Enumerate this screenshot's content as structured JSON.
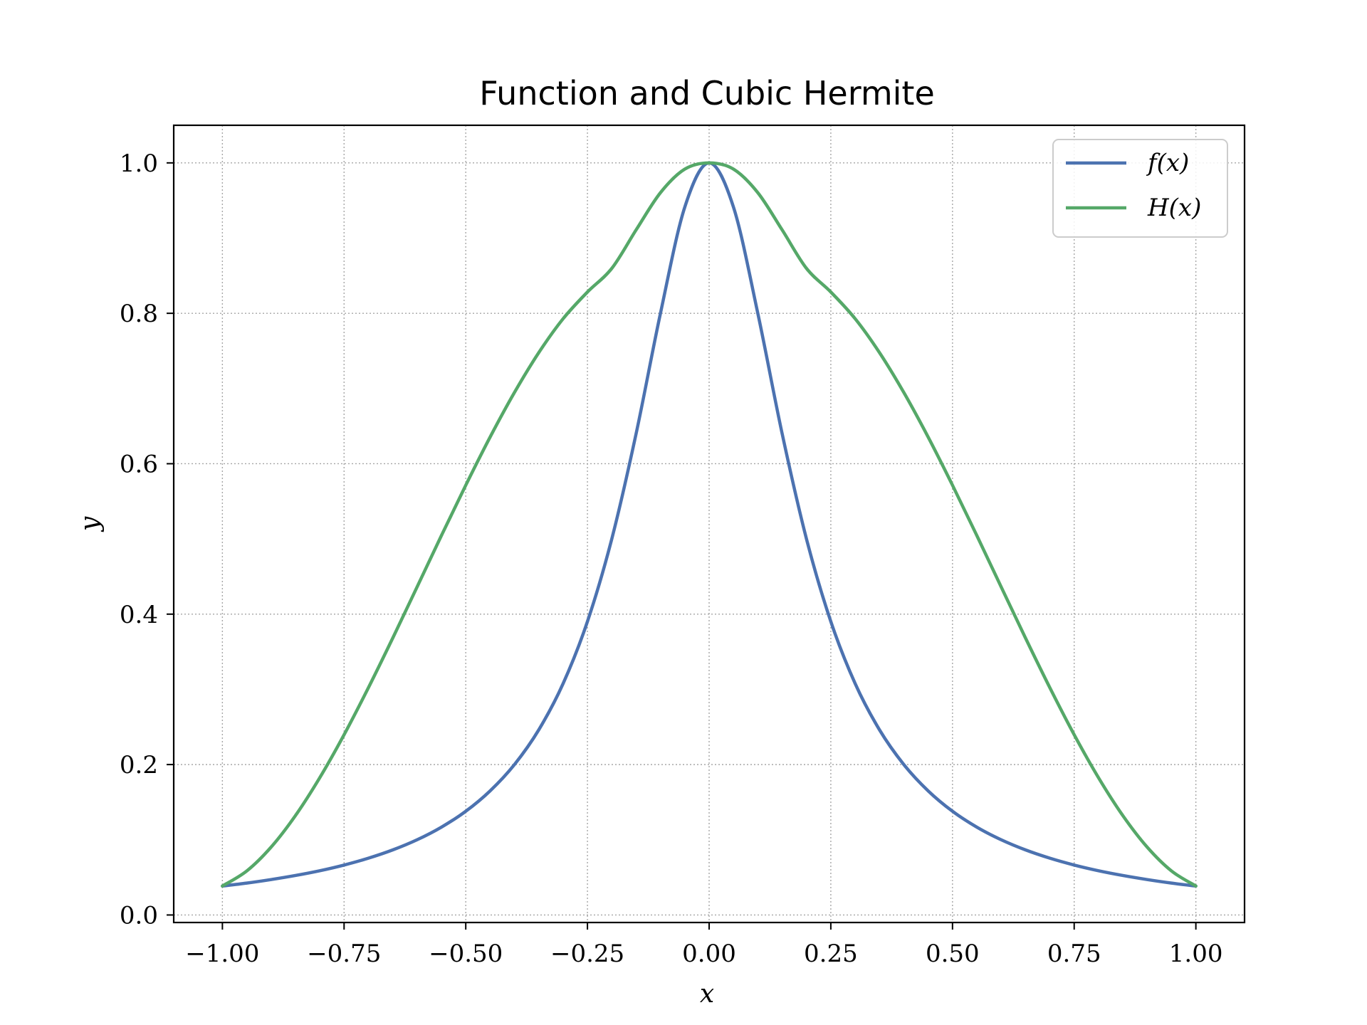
{
  "chart_data": {
    "type": "line",
    "title": "Function and Cubic Hermite",
    "xlabel": "x",
    "ylabel": "y",
    "xlim": [
      -1.1,
      1.1
    ],
    "ylim": [
      -0.01,
      1.05
    ],
    "grid": true,
    "legend_position": "top-right",
    "x_ticks": [
      -1.0,
      -0.75,
      -0.5,
      -0.25,
      0.0,
      0.25,
      0.5,
      0.75,
      1.0
    ],
    "x_tick_labels": [
      "−1.00",
      "−0.75",
      "−0.50",
      "−0.25",
      "0.00",
      "0.25",
      "0.50",
      "0.75",
      "1.00"
    ],
    "y_ticks": [
      0.0,
      0.2,
      0.4,
      0.6,
      0.8,
      1.0
    ],
    "y_tick_labels": [
      "0.0",
      "0.2",
      "0.4",
      "0.6",
      "0.8",
      "1.0"
    ],
    "x": [
      -1.0,
      -0.95,
      -0.9,
      -0.85,
      -0.8,
      -0.75,
      -0.7,
      -0.65,
      -0.6,
      -0.55,
      -0.5,
      -0.45,
      -0.4,
      -0.35,
      -0.3,
      -0.25,
      -0.2,
      -0.15,
      -0.1,
      -0.05,
      0.0,
      0.05,
      0.1,
      0.15,
      0.2,
      0.25,
      0.3,
      0.35,
      0.4,
      0.45,
      0.5,
      0.55,
      0.6,
      0.65,
      0.7,
      0.75,
      0.8,
      0.85,
      0.9,
      0.95,
      1.0
    ],
    "series": [
      {
        "name": "f(x)",
        "color": "#4c72b0",
        "values": [
          0.0385,
          0.0424,
          0.0471,
          0.0525,
          0.0588,
          0.0664,
          0.0755,
          0.0865,
          0.1,
          0.1168,
          0.1379,
          0.165,
          0.2,
          0.2462,
          0.3077,
          0.3902,
          0.5,
          0.64,
          0.8,
          0.9412,
          1.0,
          0.9412,
          0.8,
          0.64,
          0.5,
          0.3902,
          0.3077,
          0.2462,
          0.2,
          0.165,
          0.1379,
          0.1168,
          0.1,
          0.0865,
          0.0755,
          0.0664,
          0.0588,
          0.0525,
          0.0471,
          0.0424,
          0.0385
        ]
      },
      {
        "name": "H(x)",
        "color": "#55a868",
        "values": [
          0.0385,
          0.0585,
          0.0902,
          0.1321,
          0.1825,
          0.2397,
          0.3022,
          0.3682,
          0.4362,
          0.5045,
          0.5714,
          0.6354,
          0.6947,
          0.7477,
          0.7928,
          0.8283,
          0.8597,
          0.9109,
          0.9604,
          0.9917,
          1.0,
          0.9917,
          0.9604,
          0.9109,
          0.8597,
          0.8283,
          0.7928,
          0.7477,
          0.6947,
          0.6354,
          0.5714,
          0.5045,
          0.4362,
          0.3682,
          0.3022,
          0.2397,
          0.1825,
          0.1321,
          0.0902,
          0.0585,
          0.0385
        ]
      }
    ],
    "legend": [
      "f(x)",
      "H(x)"
    ]
  }
}
